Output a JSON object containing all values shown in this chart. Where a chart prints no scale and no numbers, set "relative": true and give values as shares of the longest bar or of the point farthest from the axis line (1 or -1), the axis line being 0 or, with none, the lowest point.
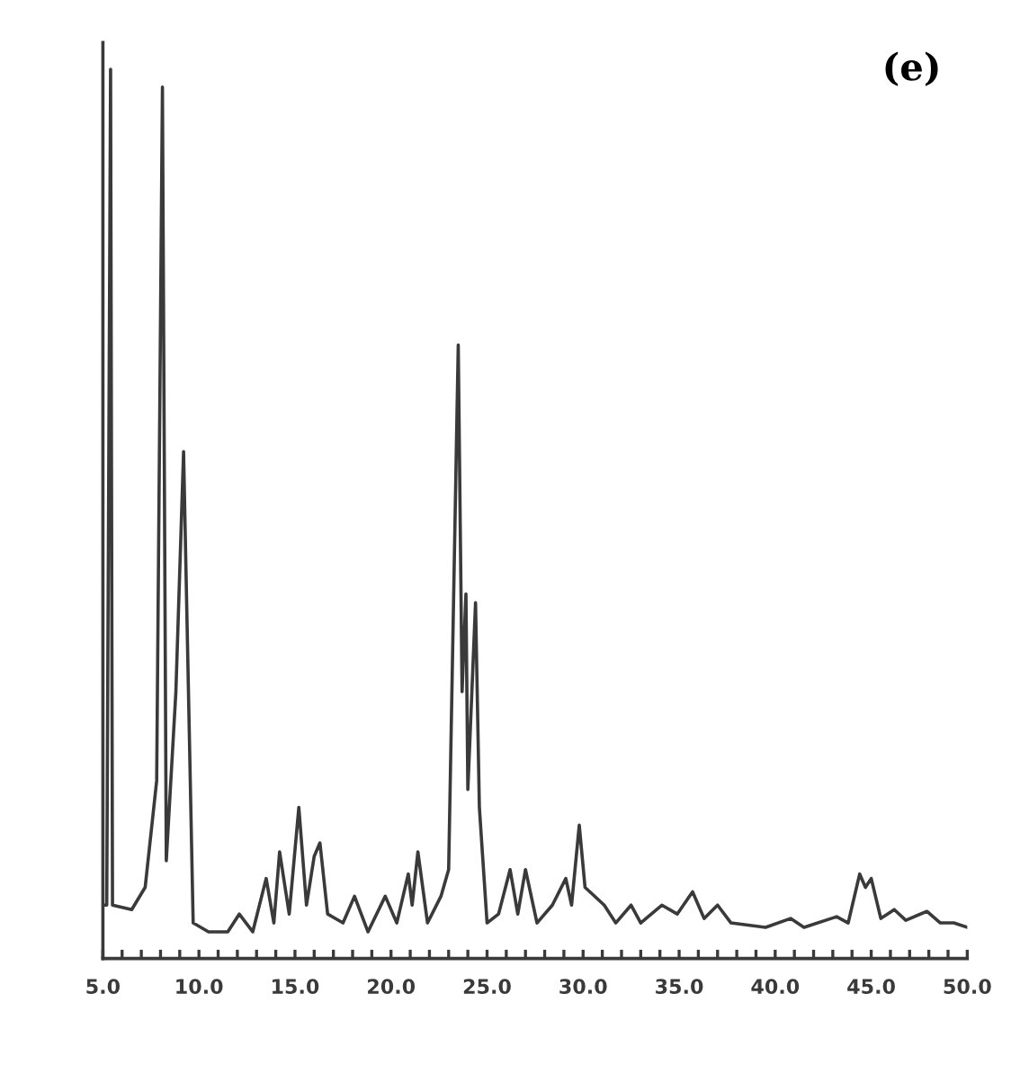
{
  "chart_data": {
    "type": "line",
    "title": "(e)",
    "relative": true,
    "color": "#3a3a3a",
    "x": [
      5.0,
      5.2,
      5.4,
      5.5,
      6.5,
      7.2,
      7.8,
      8.1,
      8.3,
      8.8,
      9.2,
      9.7,
      10.5,
      11.5,
      12.1,
      12.8,
      13.5,
      13.9,
      14.2,
      14.7,
      15.2,
      15.6,
      16.0,
      16.3,
      16.7,
      17.5,
      18.1,
      18.8,
      19.7,
      20.3,
      20.9,
      21.1,
      21.4,
      21.9,
      22.6,
      23.0,
      23.5,
      23.7,
      23.9,
      24.0,
      24.4,
      24.6,
      25.0,
      25.6,
      26.2,
      26.6,
      27.0,
      27.6,
      28.4,
      29.1,
      29.4,
      29.8,
      30.1,
      31.1,
      31.7,
      32.5,
      33.0,
      34.1,
      34.9,
      35.7,
      36.3,
      37.0,
      37.7,
      39.5,
      40.8,
      41.5,
      43.2,
      43.8,
      44.4,
      44.7,
      45.0,
      45.5,
      46.2,
      46.8,
      47.9,
      48.6,
      49.3,
      50.0
    ],
    "values": [
      0.06,
      0.06,
      1.0,
      0.06,
      0.055,
      0.08,
      0.2,
      0.98,
      0.11,
      0.3,
      0.57,
      0.04,
      0.03,
      0.03,
      0.05,
      0.03,
      0.09,
      0.04,
      0.12,
      0.05,
      0.17,
      0.06,
      0.115,
      0.13,
      0.05,
      0.04,
      0.07,
      0.03,
      0.07,
      0.04,
      0.095,
      0.06,
      0.12,
      0.04,
      0.07,
      0.1,
      0.69,
      0.3,
      0.41,
      0.19,
      0.4,
      0.17,
      0.04,
      0.05,
      0.1,
      0.05,
      0.1,
      0.04,
      0.06,
      0.09,
      0.06,
      0.15,
      0.08,
      0.06,
      0.04,
      0.06,
      0.04,
      0.06,
      0.05,
      0.075,
      0.045,
      0.06,
      0.04,
      0.035,
      0.045,
      0.035,
      0.047,
      0.04,
      0.095,
      0.08,
      0.09,
      0.045,
      0.055,
      0.043,
      0.053,
      0.04,
      0.04,
      0.035
    ],
    "xlim": [
      5.0,
      50.0
    ],
    "xticks": [
      {
        "value": 5.0,
        "label": "5.0"
      },
      {
        "value": 6,
        "label": null
      },
      {
        "value": 7,
        "label": null
      },
      {
        "value": 8,
        "label": null
      },
      {
        "value": 9,
        "label": null
      },
      {
        "value": 10.0,
        "label": "10.0"
      },
      {
        "value": 11,
        "label": null
      },
      {
        "value": 12,
        "label": null
      },
      {
        "value": 13,
        "label": null
      },
      {
        "value": 14,
        "label": null
      },
      {
        "value": 15.0,
        "label": "15.0"
      },
      {
        "value": 16,
        "label": null
      },
      {
        "value": 17,
        "label": null
      },
      {
        "value": 18,
        "label": null
      },
      {
        "value": 19,
        "label": null
      },
      {
        "value": 20.0,
        "label": "20.0"
      },
      {
        "value": 21,
        "label": null
      },
      {
        "value": 22,
        "label": null
      },
      {
        "value": 23,
        "label": null
      },
      {
        "value": 24,
        "label": null
      },
      {
        "value": 25.0,
        "label": "25.0"
      },
      {
        "value": 26,
        "label": null
      },
      {
        "value": 27,
        "label": null
      },
      {
        "value": 28,
        "label": null
      },
      {
        "value": 29,
        "label": null
      },
      {
        "value": 30.0,
        "label": "30.0"
      },
      {
        "value": 31,
        "label": null
      },
      {
        "value": 32,
        "label": null
      },
      {
        "value": 33,
        "label": null
      },
      {
        "value": 34,
        "label": null
      },
      {
        "value": 35.0,
        "label": "35.0"
      },
      {
        "value": 36,
        "label": null
      },
      {
        "value": 37,
        "label": null
      },
      {
        "value": 38,
        "label": null
      },
      {
        "value": 39,
        "label": null
      },
      {
        "value": 40.0,
        "label": "40.0"
      },
      {
        "value": 41,
        "label": null
      },
      {
        "value": 42,
        "label": null
      },
      {
        "value": 43,
        "label": null
      },
      {
        "value": 44,
        "label": null
      },
      {
        "value": 45.0,
        "label": "45.0"
      },
      {
        "value": 46,
        "label": null
      },
      {
        "value": 47,
        "label": null
      },
      {
        "value": 48,
        "label": null
      },
      {
        "value": 49,
        "label": null
      },
      {
        "value": 50.0,
        "label": "50.0"
      }
    ],
    "grid": false,
    "legend": false,
    "marker": "none",
    "line_style": "solid"
  }
}
